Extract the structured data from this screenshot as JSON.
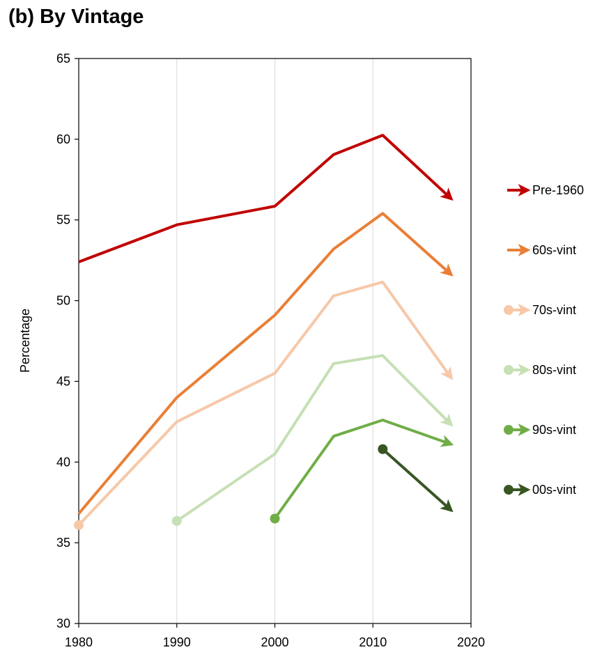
{
  "chart_data": {
    "type": "line",
    "title": "(b) By Vintage",
    "xlabel": "",
    "ylabel": "Percentage",
    "xlim": [
      1980,
      2020
    ],
    "ylim": [
      30,
      65
    ],
    "xticks": [
      1980,
      1990,
      2000,
      2010,
      2020
    ],
    "yticks": [
      30,
      35,
      40,
      45,
      50,
      55,
      60,
      65
    ],
    "grid": "vertical",
    "legend_position": "right",
    "series": [
      {
        "name": "Pre-1960",
        "color": "#C00000",
        "points": [
          [
            1980,
            52.4
          ],
          [
            1990,
            54.7
          ],
          [
            2000,
            55.85
          ],
          [
            2006,
            59.05
          ],
          [
            2011,
            60.25
          ],
          [
            2018,
            56.3
          ]
        ],
        "start_marker": false,
        "end_arrow": true
      },
      {
        "name": "60s-vint",
        "color": "#E97F36",
        "points": [
          [
            1980,
            36.8
          ],
          [
            1990,
            44.0
          ],
          [
            2000,
            49.1
          ],
          [
            2006,
            53.2
          ],
          [
            2011,
            55.4
          ],
          [
            2018,
            51.6
          ]
        ],
        "start_marker": false,
        "end_arrow": true
      },
      {
        "name": "70s-vint",
        "color": "#F6C8A8",
        "points": [
          [
            1980,
            36.1
          ],
          [
            1990,
            42.5
          ],
          [
            2000,
            45.5
          ],
          [
            2006,
            50.3
          ],
          [
            2011,
            51.15
          ],
          [
            2018,
            45.2
          ]
        ],
        "start_marker": true,
        "end_arrow": true
      },
      {
        "name": "80s-vint",
        "color": "#C5E0B4",
        "points": [
          [
            1990,
            36.35
          ],
          [
            2000,
            40.5
          ],
          [
            2006,
            46.1
          ],
          [
            2011,
            46.6
          ],
          [
            2018,
            42.3
          ]
        ],
        "start_marker": true,
        "end_arrow": true
      },
      {
        "name": "90s-vint",
        "color": "#70AD47",
        "points": [
          [
            2000,
            36.5
          ],
          [
            2006,
            41.6
          ],
          [
            2011,
            42.6
          ],
          [
            2018,
            41.1
          ]
        ],
        "start_marker": true,
        "end_arrow": true
      },
      {
        "name": "00s-vint",
        "color": "#375623",
        "points": [
          [
            2011,
            40.8
          ],
          [
            2018,
            37.0
          ]
        ],
        "start_marker": true,
        "end_arrow": true
      }
    ]
  }
}
